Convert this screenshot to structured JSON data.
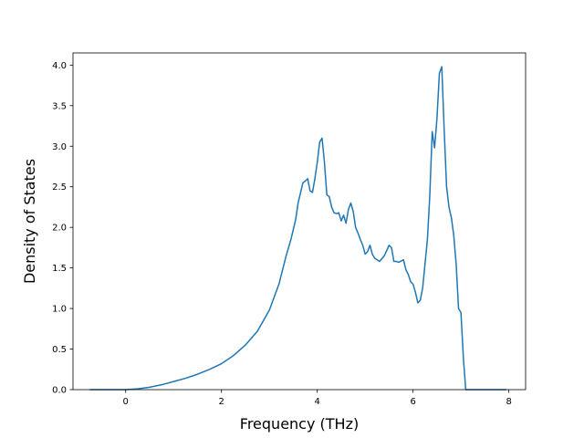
{
  "chart_data": {
    "type": "line",
    "title": "",
    "xlabel": "Frequency (THz)",
    "ylabel": "Density of States",
    "xlim": [
      -1.1,
      8.35
    ],
    "ylim": [
      0.0,
      4.15
    ],
    "xticks": [
      0,
      2,
      4,
      6,
      8
    ],
    "xtick_labels": [
      "0",
      "2",
      "4",
      "6",
      "8"
    ],
    "yticks": [
      0.0,
      0.5,
      1.0,
      1.5,
      2.0,
      2.5,
      3.0,
      3.5,
      4.0
    ],
    "ytick_labels": [
      "0.0",
      "0.5",
      "1.0",
      "1.5",
      "2.0",
      "2.5",
      "3.0",
      "3.5",
      "4.0"
    ],
    "grid": false,
    "legend": "none",
    "series": [
      {
        "color": "#1f77b4",
        "x": [
          -0.75,
          -0.5,
          -0.25,
          0.0,
          0.25,
          0.5,
          0.75,
          1.0,
          1.25,
          1.5,
          1.75,
          2.0,
          2.25,
          2.5,
          2.75,
          3.0,
          3.2,
          3.35,
          3.45,
          3.55,
          3.6,
          3.7,
          3.75,
          3.8,
          3.85,
          3.9,
          3.95,
          4.0,
          4.05,
          4.1,
          4.15,
          4.2,
          4.25,
          4.3,
          4.35,
          4.4,
          4.45,
          4.5,
          4.55,
          4.6,
          4.65,
          4.7,
          4.75,
          4.8,
          4.85,
          4.9,
          4.95,
          5.0,
          5.05,
          5.1,
          5.15,
          5.2,
          5.3,
          5.4,
          5.5,
          5.55,
          5.6,
          5.65,
          5.7,
          5.8,
          5.85,
          5.9,
          5.95,
          6.0,
          6.05,
          6.1,
          6.15,
          6.2,
          6.25,
          6.3,
          6.35,
          6.4,
          6.45,
          6.5,
          6.55,
          6.6,
          6.65,
          6.7,
          6.75,
          6.8,
          6.85,
          6.9,
          6.95,
          7.0,
          7.05,
          7.1,
          7.15,
          7.2,
          7.4,
          7.6,
          7.8,
          7.95
        ],
        "y": [
          0.0,
          0.0,
          0.0,
          0.0,
          0.01,
          0.03,
          0.06,
          0.1,
          0.14,
          0.19,
          0.25,
          0.32,
          0.42,
          0.55,
          0.72,
          0.98,
          1.3,
          1.65,
          1.85,
          2.1,
          2.3,
          2.55,
          2.57,
          2.6,
          2.45,
          2.43,
          2.6,
          2.8,
          3.05,
          3.1,
          2.8,
          2.4,
          2.38,
          2.25,
          2.18,
          2.17,
          2.18,
          2.08,
          2.15,
          2.05,
          2.22,
          2.3,
          2.2,
          2.0,
          1.93,
          1.85,
          1.78,
          1.67,
          1.7,
          1.78,
          1.67,
          1.62,
          1.58,
          1.65,
          1.78,
          1.75,
          1.58,
          1.58,
          1.57,
          1.6,
          1.48,
          1.42,
          1.33,
          1.3,
          1.2,
          1.07,
          1.1,
          1.25,
          1.55,
          1.85,
          2.4,
          3.18,
          2.98,
          3.35,
          3.9,
          3.98,
          3.2,
          2.5,
          2.25,
          2.12,
          1.9,
          1.55,
          1.0,
          0.95,
          0.4,
          0.0,
          0.0,
          0.0,
          0.0,
          0.0,
          0.0,
          0.0
        ]
      }
    ]
  }
}
